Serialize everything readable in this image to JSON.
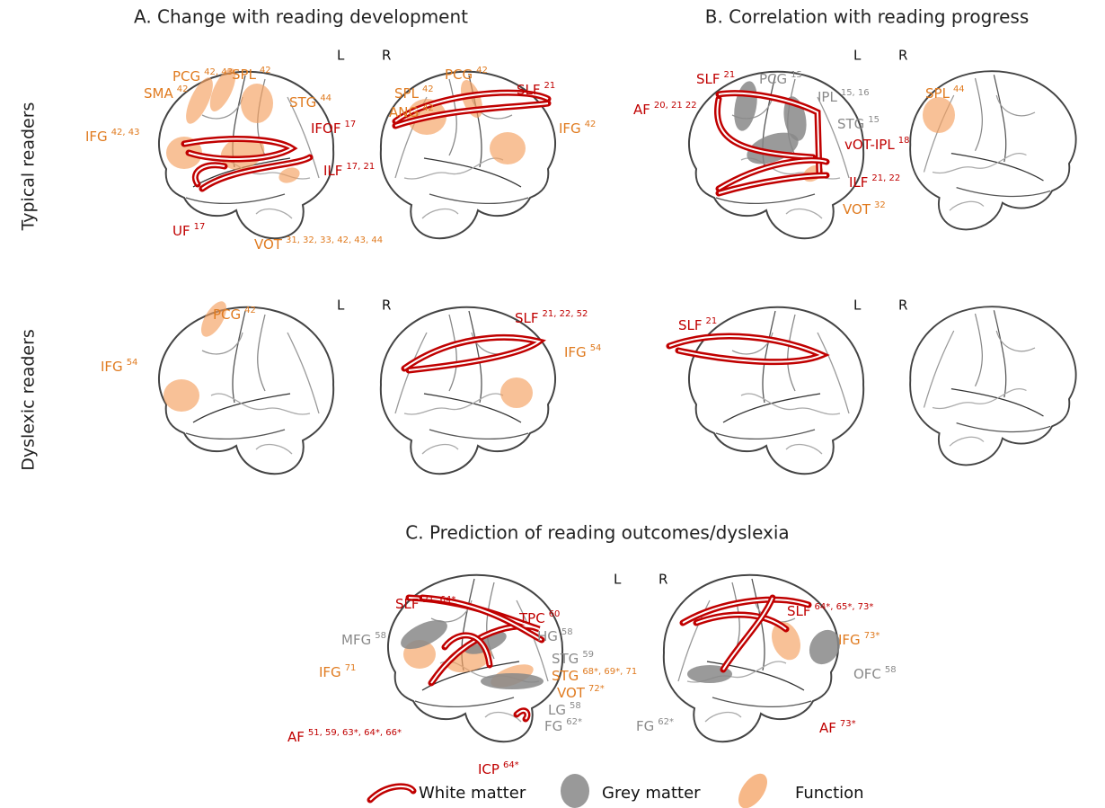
{
  "panels": {
    "a": {
      "title": "A.  Change with reading development"
    },
    "b": {
      "title": "B.  Correlation with reading progress"
    },
    "c": {
      "title": "C.  Prediction of reading outcomes/dyslexia"
    }
  },
  "rows": [
    "Typical readers",
    "Dyslexic readers"
  ],
  "hemispheres": [
    "L",
    "R"
  ],
  "labels": [
    {
      "name": "PCG",
      "refs": "42, 43"
    },
    {
      "name": "SPL",
      "refs": "42"
    },
    {
      "name": "SMA",
      "refs": "42"
    },
    {
      "name": "STG",
      "refs": "44"
    },
    {
      "name": "IFG",
      "refs": "42, 43"
    },
    {
      "name": "IFOF",
      "refs": "17"
    },
    {
      "name": "ILF",
      "refs": "17, 21"
    },
    {
      "name": "UF",
      "refs": "17"
    },
    {
      "name": "VOT",
      "refs": "31, 32, 33, 42, 43, 44"
    },
    {
      "name": "PCG",
      "refs": "42"
    },
    {
      "name": "SPL",
      "refs": "42"
    },
    {
      "name": "SLF",
      "refs": "21"
    },
    {
      "name": "ANG",
      "refs": "42"
    },
    {
      "name": "IFG",
      "refs": "42"
    },
    {
      "name": "SLF",
      "refs": "21"
    },
    {
      "name": "PCG",
      "refs": "15"
    },
    {
      "name": "IPL",
      "refs": "15, 16"
    },
    {
      "name": "AF",
      "refs": "20, 21 22"
    },
    {
      "name": "STG",
      "refs": "15"
    },
    {
      "name": "vOT-IPL",
      "refs": "18"
    },
    {
      "name": "ILF",
      "refs": "21, 22"
    },
    {
      "name": "VOT",
      "refs": "32"
    },
    {
      "name": "SPL",
      "refs": "44"
    },
    {
      "name": "PCG",
      "refs": "42"
    },
    {
      "name": "IFG",
      "refs": "54"
    },
    {
      "name": "SLF",
      "refs": "21, 22, 52"
    },
    {
      "name": "IFG",
      "refs": "54"
    },
    {
      "name": "SLF",
      "refs": "21"
    },
    {
      "name": "SLF",
      "refs": "21, 64*"
    },
    {
      "name": "TPC",
      "refs": "60"
    },
    {
      "name": "MFG",
      "refs": "58"
    },
    {
      "name": "HG",
      "refs": "58"
    },
    {
      "name": "STG",
      "refs": "59"
    },
    {
      "name": "IFG",
      "refs": "71"
    },
    {
      "name": "STG",
      "refs": "68*, 69*, 71"
    },
    {
      "name": "VOT",
      "refs": "72*"
    },
    {
      "name": "LG",
      "refs": "58"
    },
    {
      "name": "FG",
      "refs": "62*"
    },
    {
      "name": "AF",
      "refs": "51, 59, 63*, 64*, 66*"
    },
    {
      "name": "ICP",
      "refs": "64*"
    },
    {
      "name": "SLF",
      "refs": "64*, 65*, 73*"
    },
    {
      "name": "IFG",
      "refs": "73*"
    },
    {
      "name": "OFC",
      "refs": "58"
    },
    {
      "name": "FG",
      "refs": "62*"
    },
    {
      "name": "AF",
      "refs": "73*"
    }
  ],
  "legend": [
    "White matter",
    "Grey matter",
    "Function"
  ]
}
